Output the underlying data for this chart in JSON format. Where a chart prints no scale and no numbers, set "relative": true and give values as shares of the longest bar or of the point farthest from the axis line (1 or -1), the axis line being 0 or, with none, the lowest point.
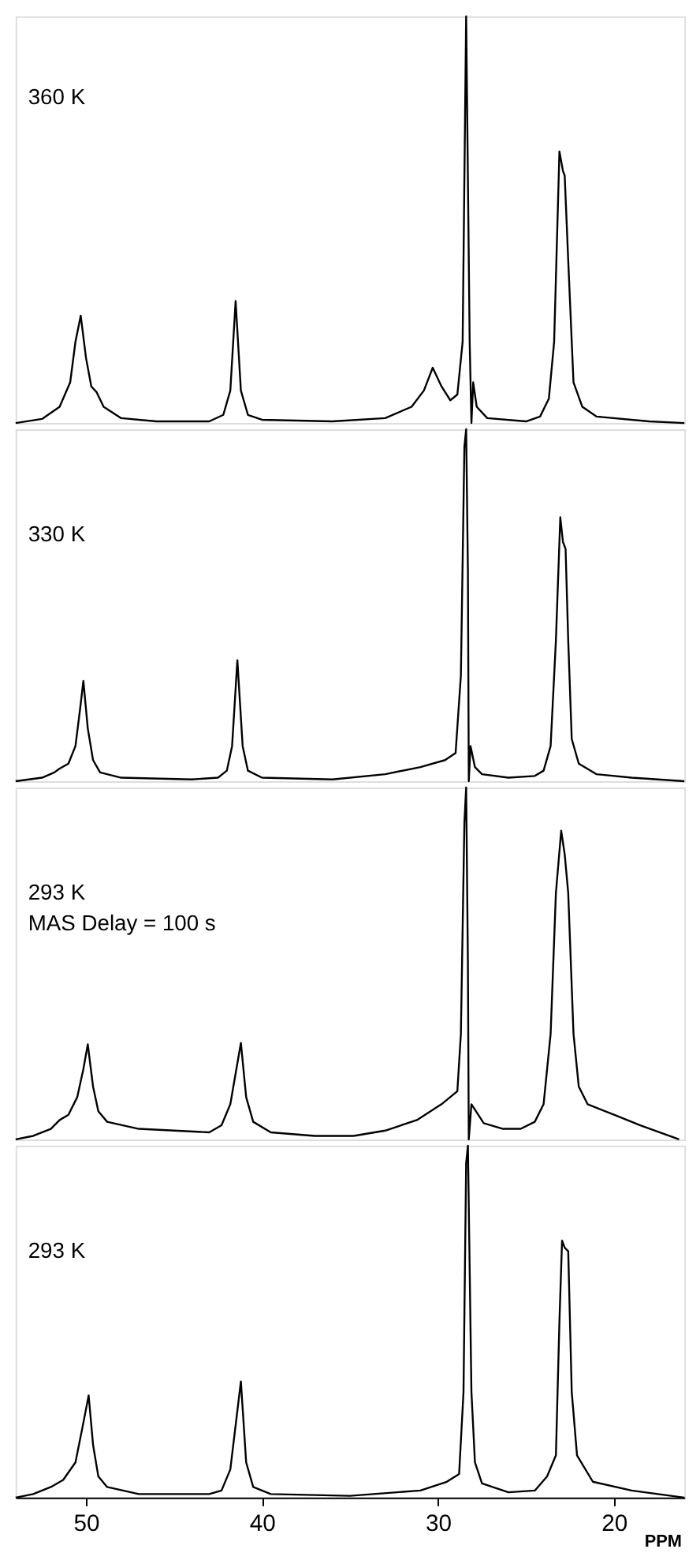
{
  "chart_data": [
    {
      "type": "line",
      "relative": true,
      "xlim": [
        54,
        16
      ],
      "tick_labels": false,
      "series": [
        {
          "name": "360 K",
          "color": "#000000",
          "x": [
            54,
            52.5,
            51.5,
            50.9,
            50.6,
            50.3,
            50.0,
            49.7,
            49.4,
            49.0,
            48.0,
            46,
            43,
            42.2,
            41.8,
            41.5,
            41.2,
            40.8,
            40,
            36,
            33,
            31.5,
            30.8,
            30.3,
            29.8,
            29.3,
            28.9,
            28.6,
            28.4,
            28.2,
            28.1,
            28.0,
            27.8,
            27.2,
            25,
            24.2,
            23.7,
            23.4,
            23.1,
            22.9,
            22.8,
            22.6,
            22.3,
            21.8,
            21,
            18,
            16
          ],
          "values": [
            0,
            0.01,
            0.04,
            0.1,
            0.2,
            0.264,
            0.16,
            0.09,
            0.076,
            0.04,
            0.012,
            0.004,
            0.004,
            0.02,
            0.08,
            0.3,
            0.08,
            0.02,
            0.008,
            0.004,
            0.012,
            0.04,
            0.08,
            0.136,
            0.09,
            0.056,
            0.07,
            0.2,
            1.0,
            0.2,
            0,
            0.1,
            0.04,
            0.012,
            0.004,
            0.016,
            0.06,
            0.2,
            0.668,
            0.62,
            0.608,
            0.4,
            0.1,
            0.04,
            0.016,
            0.004,
            0
          ]
        }
      ]
    },
    {
      "type": "line",
      "relative": true,
      "xlim": [
        54,
        16
      ],
      "tick_labels": false,
      "series": [
        {
          "name": "330 K",
          "color": "#000000",
          "x": [
            54,
            52.5,
            51.8,
            51.5,
            51,
            50.6,
            50.35,
            50.15,
            49.9,
            49.6,
            49.2,
            48,
            44,
            42.5,
            42,
            41.7,
            41.4,
            41.1,
            40.8,
            40,
            36,
            33,
            31,
            29.6,
            29.0,
            28.7,
            28.5,
            28.4,
            28.3,
            28.25,
            28.15,
            27.9,
            27.5,
            26,
            24.5,
            24,
            23.6,
            23.3,
            23.05,
            22.9,
            22.75,
            22.6,
            22.4,
            22,
            21,
            19,
            16
          ],
          "values": [
            0,
            0.01,
            0.025,
            0.036,
            0.05,
            0.1,
            0.2,
            0.285,
            0.15,
            0.06,
            0.025,
            0.01,
            0.005,
            0.01,
            0.03,
            0.1,
            0.344,
            0.1,
            0.03,
            0.01,
            0.005,
            0.02,
            0.04,
            0.06,
            0.08,
            0.3,
            0.95,
            1.0,
            0.6,
            0,
            0.1,
            0.04,
            0.02,
            0.01,
            0.015,
            0.03,
            0.1,
            0.4,
            0.75,
            0.68,
            0.66,
            0.4,
            0.12,
            0.05,
            0.02,
            0.01,
            0
          ]
        }
      ]
    },
    {
      "type": "line",
      "relative": true,
      "xlim": [
        54,
        16
      ],
      "tick_labels": false,
      "annotations": [
        "MAS Delay = 100 s"
      ],
      "series": [
        {
          "name": "293 K",
          "color": "#000000",
          "x": [
            54,
            53,
            52,
            51.5,
            51,
            50.5,
            50.15,
            49.9,
            49.6,
            49.3,
            48.8,
            47,
            43,
            42.3,
            41.8,
            41.2,
            40.9,
            40.5,
            39.5,
            37,
            34.8,
            33,
            31.2,
            29.8,
            28.9,
            28.7,
            28.5,
            28.4,
            28.3,
            28.25,
            28.1,
            27.4,
            26.3,
            25.3,
            24.5,
            24,
            23.6,
            23.3,
            23.0,
            22.8,
            22.6,
            22.3,
            22.0,
            21.5,
            20,
            18.5,
            16.3
          ],
          "values": [
            0,
            0.01,
            0.03,
            0.055,
            0.07,
            0.12,
            0.2,
            0.27,
            0.15,
            0.08,
            0.05,
            0.03,
            0.02,
            0.04,
            0.1,
            0.274,
            0.12,
            0.05,
            0.02,
            0.01,
            0.01,
            0.025,
            0.055,
            0.1,
            0.137,
            0.3,
            0.9,
            1.0,
            0.5,
            0,
            0.1,
            0.046,
            0.03,
            0.03,
            0.05,
            0.1,
            0.3,
            0.7,
            0.877,
            0.81,
            0.7,
            0.3,
            0.15,
            0.1,
            0.07,
            0.04,
            0
          ]
        }
      ]
    },
    {
      "type": "line",
      "relative": true,
      "xlim": [
        54,
        16
      ],
      "xticks": [
        50,
        40,
        30,
        20
      ],
      "xlabel": "PPM",
      "tick_labels": "x",
      "series": [
        {
          "name": "293 K",
          "color": "#000000",
          "x": [
            54,
            53,
            52,
            51.3,
            50.6,
            50.2,
            49.85,
            49.6,
            49.3,
            48.8,
            47,
            43,
            42.3,
            41.8,
            41.2,
            40.9,
            40.5,
            39.5,
            35,
            31,
            29.5,
            28.8,
            28.55,
            28.4,
            28.3,
            28.1,
            27.9,
            27.5,
            26,
            24.5,
            23.8,
            23.3,
            23.1,
            22.95,
            22.8,
            22.6,
            22.4,
            22.1,
            21.2,
            19,
            16
          ],
          "values": [
            0,
            0.01,
            0.03,
            0.05,
            0.1,
            0.2,
            0.29,
            0.15,
            0.06,
            0.03,
            0.01,
            0.01,
            0.02,
            0.08,
            0.33,
            0.1,
            0.03,
            0.01,
            0.005,
            0.02,
            0.045,
            0.067,
            0.3,
            0.95,
            1.0,
            0.3,
            0.1,
            0.04,
            0.015,
            0.02,
            0.06,
            0.12,
            0.5,
            0.73,
            0.71,
            0.7,
            0.3,
            0.12,
            0.045,
            0.02,
            0
          ]
        }
      ]
    }
  ]
}
